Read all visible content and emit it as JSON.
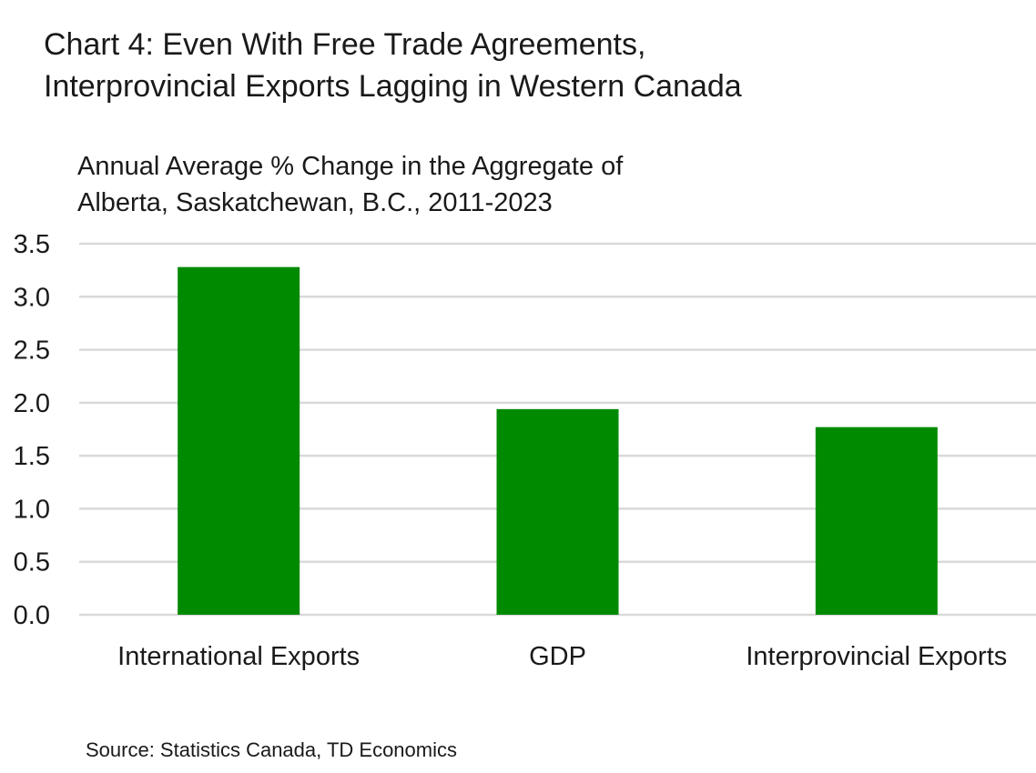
{
  "header": {
    "title_line1": "Chart 4: Even With Free Trade Agreements,",
    "title_line2": "Interprovincial Exports Lagging in Western Canada",
    "subtitle_line1": "Annual Average % Change in the Aggregate of",
    "subtitle_line2": "Alberta, Saskatchewan, B.C., 2011-2023"
  },
  "footer": {
    "source": "Source: Statistics Canada, TD Economics"
  },
  "chart_data": {
    "type": "bar",
    "title": "Chart 4: Even With Free Trade Agreements, Interprovincial Exports Lagging in Western Canada",
    "ylabel": "Annual Average % Change in the Aggregate of Alberta, Saskatchewan, B.C., 2011-2023",
    "xlabel": "",
    "categories": [
      "International Exports",
      "GDP",
      "Interprovincial Exports"
    ],
    "values": [
      3.28,
      1.94,
      1.77
    ],
    "ylim": [
      0,
      3.5
    ],
    "yticks": [
      "0.0",
      "0.5",
      "1.0",
      "1.5",
      "2.0",
      "2.5",
      "3.0",
      "3.5"
    ],
    "grid": true,
    "legend": "none",
    "colors": {
      "bar": "#008a00",
      "grid": "#d9d9d9",
      "text": "#1a1a1a"
    }
  }
}
